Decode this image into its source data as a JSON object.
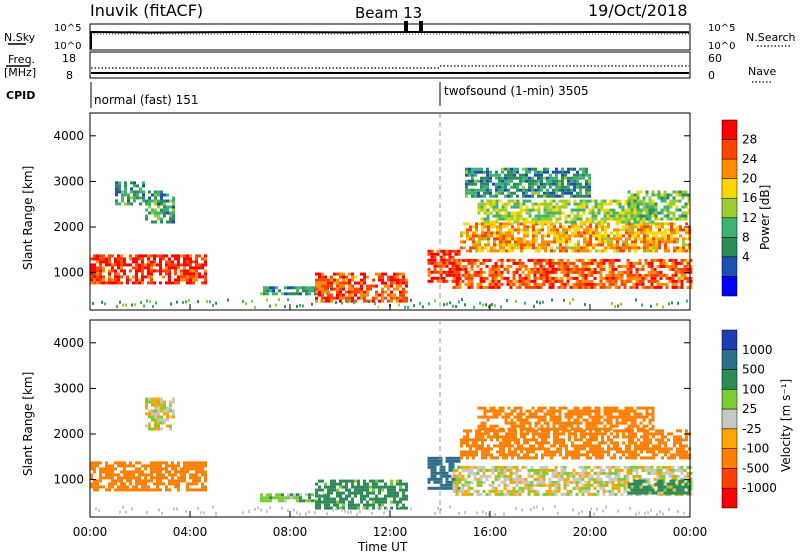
{
  "header": {
    "station": "Inuvik (fitACF)",
    "beam": "Beam 13",
    "date": "19/Oct/2018"
  },
  "strip_labels": {
    "nsky": "N.Sky",
    "nsky_ticks": [
      "10^5",
      "10^0"
    ],
    "nsearch": "N.Search",
    "nsearch_ticks": [
      "10^5",
      "10^0"
    ],
    "freq_line1": "Freq.",
    "freq_line2": "[MHz]",
    "freq_ticks": [
      "18",
      "8"
    ],
    "nave": "Nave",
    "nave_ticks": [
      "60",
      "0"
    ],
    "cpid": "CPID",
    "cpid_modes": [
      {
        "label": "normal (fast) 151",
        "start_hour": 0
      },
      {
        "label": "twofsound (1-min) 3505",
        "start_hour": 14
      }
    ]
  },
  "x_axis": {
    "label": "Time UT",
    "ticks": [
      "00:00",
      "04:00",
      "08:00",
      "12:00",
      "16:00",
      "20:00",
      "00:00"
    ],
    "range_hours": [
      0,
      24
    ]
  },
  "y_axis": {
    "label": "Slant Range [km]",
    "ticks": [
      1000,
      2000,
      3000,
      4000
    ],
    "range_km": [
      180,
      4500
    ]
  },
  "power_colorbar": {
    "label": "Power [dB]",
    "ticks": [
      "28",
      "24",
      "20",
      "16",
      "12",
      "8",
      "4"
    ],
    "colors": [
      "#ff0000",
      "#ff4500",
      "#ff8c00",
      "#ffd700",
      "#9acd32",
      "#3cb371",
      "#2e8b57",
      "#1e50b4",
      "#0000ff"
    ]
  },
  "velocity_colorbar": {
    "label": "Velocity [m s⁻¹]",
    "ticks": [
      "1000",
      "500",
      "100",
      "25",
      "-25",
      "-100",
      "-500",
      "-1000"
    ],
    "colors": [
      "#1e3cb4",
      "#2c6e8c",
      "#2e8b57",
      "#7ccd32",
      "#c8c8c0",
      "#ffa500",
      "#ff7f00",
      "#ff4000",
      "#ff0000"
    ]
  },
  "chart_data": [
    {
      "type": "heatmap",
      "title": "Power [dB]",
      "xlabel": "Time UT",
      "ylabel": "Slant Range [km]",
      "xlim": [
        0,
        24
      ],
      "ylim": [
        180,
        4500
      ],
      "zlabel": "Power [dB]",
      "regions": [
        {
          "t0": 0.0,
          "t1": 4.6,
          "r0": 750,
          "r1": 1400,
          "value": 26
        },
        {
          "t0": 2.2,
          "t1": 3.3,
          "r0": 2100,
          "r1": 2800,
          "value": 9
        },
        {
          "t0": 1.0,
          "t1": 2.2,
          "r0": 2500,
          "r1": 3000,
          "value": 8
        },
        {
          "t0": 6.8,
          "t1": 9.5,
          "r0": 550,
          "r1": 700,
          "value": 8
        },
        {
          "t0": 9.0,
          "t1": 12.7,
          "r0": 350,
          "r1": 1000,
          "value": 24
        },
        {
          "t0": 13.5,
          "t1": 14.8,
          "r0": 800,
          "r1": 1500,
          "value": 26
        },
        {
          "t0": 14.5,
          "t1": 24.0,
          "r0": 700,
          "r1": 1300,
          "value": 24
        },
        {
          "t0": 14.8,
          "t1": 24.0,
          "r0": 1500,
          "r1": 2100,
          "value": 20
        },
        {
          "t0": 15.5,
          "t1": 22.5,
          "r0": 2100,
          "r1": 2600,
          "value": 14
        },
        {
          "t0": 21.5,
          "t1": 24.0,
          "r0": 2200,
          "r1": 2800,
          "value": 12
        },
        {
          "t0": 15.0,
          "t1": 20.0,
          "r0": 2700,
          "r1": 3300,
          "value": 8
        }
      ]
    },
    {
      "type": "heatmap",
      "title": "Velocity [m s⁻¹]",
      "xlabel": "Time UT",
      "ylabel": "Slant Range [km]",
      "xlim": [
        0,
        24
      ],
      "ylim": [
        180,
        4500
      ],
      "zlabel": "Velocity [m s⁻¹]",
      "regions": [
        {
          "t0": 0.0,
          "t1": 4.6,
          "r0": 750,
          "r1": 1400,
          "value": -200
        },
        {
          "t0": 2.2,
          "t1": 3.3,
          "r0": 2100,
          "r1": 2800,
          "value": 0
        },
        {
          "t0": 6.8,
          "t1": 9.5,
          "r0": 550,
          "r1": 700,
          "value": 60
        },
        {
          "t0": 9.0,
          "t1": 12.7,
          "r0": 350,
          "r1": 1000,
          "value": 150
        },
        {
          "t0": 13.5,
          "t1": 14.8,
          "r0": 800,
          "r1": 1500,
          "value": 600
        },
        {
          "t0": 14.5,
          "t1": 24.0,
          "r0": 700,
          "r1": 1300,
          "value": 0
        },
        {
          "t0": 14.8,
          "t1": 24.0,
          "r0": 1500,
          "r1": 2100,
          "value": -200
        },
        {
          "t0": 15.5,
          "t1": 22.5,
          "r0": 2100,
          "r1": 2600,
          "value": -300
        },
        {
          "t0": 21.5,
          "t1": 24.0,
          "r0": 700,
          "r1": 1000,
          "value": 150
        }
      ]
    }
  ]
}
